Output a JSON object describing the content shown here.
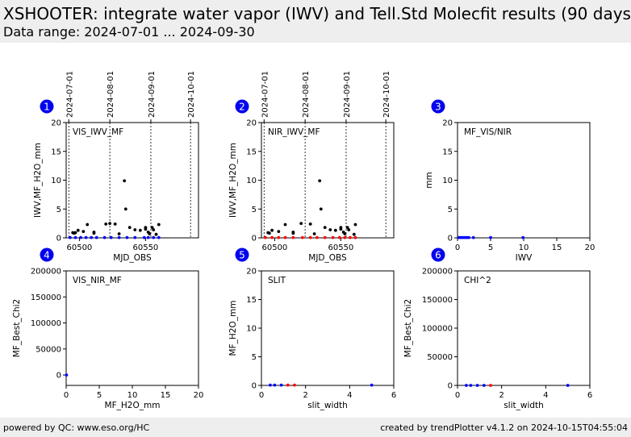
{
  "header": {
    "title": "XSHOOTER: integrate water vapor (IWV) and Tell.Std Molecfit results (90 days p",
    "subtitle": "Data range: 2024-07-01 ... 2024-09-30"
  },
  "footer": {
    "left": "powered by QC: www.eso.org/HC",
    "right": "created by trendPlotter v4.1.2 on 2024-10-15T04:55:04"
  },
  "colors": {
    "badge": "#0000ee",
    "black": "#000000",
    "blue": "#0000ff",
    "red": "#ff0000"
  },
  "chart_data": [
    {
      "id": "1",
      "type": "scatter",
      "label": "VIS_IWV_MF",
      "xlabel": "MJD_OBS",
      "ylabel": "IWV,MF_H2O_mm",
      "xlim": [
        60490,
        60590
      ],
      "ylim": [
        0,
        20
      ],
      "xticks": [
        60500,
        60550
      ],
      "yticks": [
        0,
        5,
        10,
        15,
        20
      ],
      "date_markers": [
        {
          "label": "2024-07-01",
          "x": 60492
        },
        {
          "label": "2024-08-01",
          "x": 60523
        },
        {
          "label": "2024-09-01",
          "x": 60554
        },
        {
          "label": "2024-10-01",
          "x": 60584
        }
      ],
      "series": [
        {
          "color": "black",
          "points": [
            [
              60495,
              0.9
            ],
            [
              60496,
              0.8
            ],
            [
              60497,
              0.9
            ],
            [
              60499,
              1.3
            ],
            [
              60503,
              1.1
            ],
            [
              60506,
              2.3
            ],
            [
              60511,
              0.8
            ],
            [
              60511,
              1.0
            ],
            [
              60520,
              2.4
            ],
            [
              60523,
              2.5
            ],
            [
              60527,
              2.4
            ],
            [
              60530,
              0.7
            ],
            [
              60534,
              9.9
            ],
            [
              60535,
              5.0
            ],
            [
              60538,
              1.8
            ],
            [
              60542,
              1.4
            ],
            [
              60546,
              1.3
            ],
            [
              60550,
              1.8
            ],
            [
              60550,
              1.5
            ],
            [
              60552,
              1.0
            ],
            [
              60553,
              0.7
            ],
            [
              60555,
              1.8
            ],
            [
              60556,
              1.4
            ],
            [
              60558,
              0.6
            ],
            [
              60560,
              2.3
            ]
          ]
        },
        {
          "color": "blue",
          "points": [
            [
              60493,
              0.05
            ],
            [
              60497,
              0.05
            ],
            [
              60501,
              0.05
            ],
            [
              60505,
              0.05
            ],
            [
              60509,
              0.05
            ],
            [
              60513,
              0.05
            ],
            [
              60519,
              0.05
            ],
            [
              60524,
              0.05
            ],
            [
              60530,
              0.05
            ],
            [
              60536,
              0.05
            ],
            [
              60542,
              0.05
            ],
            [
              60549,
              0.05
            ],
            [
              60552,
              0.05
            ],
            [
              60556,
              0.05
            ],
            [
              60560,
              0.05
            ]
          ]
        }
      ]
    },
    {
      "id": "2",
      "type": "scatter",
      "label": "NIR_IWV_MF",
      "xlabel": "MJD_OBS",
      "ylabel": "IWV,MF_H2O_mm",
      "xlim": [
        60490,
        60590
      ],
      "ylim": [
        0,
        20
      ],
      "xticks": [
        60500,
        60550
      ],
      "yticks": [
        0,
        5,
        10,
        15,
        20
      ],
      "date_markers": [
        {
          "label": "2024-07-01",
          "x": 60492
        },
        {
          "label": "2024-08-01",
          "x": 60523
        },
        {
          "label": "2024-09-01",
          "x": 60554
        },
        {
          "label": "2024-10-01",
          "x": 60584
        }
      ],
      "series": [
        {
          "color": "black",
          "points": [
            [
              60495,
              0.9
            ],
            [
              60496,
              0.8
            ],
            [
              60498,
              1.3
            ],
            [
              60503,
              1.1
            ],
            [
              60508,
              2.3
            ],
            [
              60514,
              0.8
            ],
            [
              60514,
              1.0
            ],
            [
              60520,
              2.5
            ],
            [
              60527,
              2.4
            ],
            [
              60530,
              0.7
            ],
            [
              60534,
              9.9
            ],
            [
              60535,
              5.0
            ],
            [
              60538,
              1.8
            ],
            [
              60542,
              1.4
            ],
            [
              60546,
              1.3
            ],
            [
              60550,
              1.8
            ],
            [
              60550,
              1.5
            ],
            [
              60552,
              1.0
            ],
            [
              60553,
              0.7
            ],
            [
              60555,
              1.8
            ],
            [
              60556,
              1.4
            ],
            [
              60560,
              0.6
            ],
            [
              60561,
              2.3
            ]
          ]
        },
        {
          "color": "red",
          "points": [
            [
              60493,
              0.05
            ],
            [
              60498,
              0.05
            ],
            [
              60503,
              0.05
            ],
            [
              60508,
              0.05
            ],
            [
              60514,
              0.05
            ],
            [
              60521,
              0.05
            ],
            [
              60527,
              0.05
            ],
            [
              60532,
              0.05
            ],
            [
              60538,
              0.05
            ],
            [
              60544,
              0.05
            ],
            [
              60549,
              0.05
            ],
            [
              60553,
              0.05
            ],
            [
              60557,
              0.05
            ],
            [
              60561,
              0.05
            ]
          ]
        }
      ]
    },
    {
      "id": "3",
      "type": "scatter",
      "label": "MF_VIS/NIR",
      "xlabel": "IWV",
      "ylabel": "mm",
      "xlim": [
        0,
        20
      ],
      "ylim": [
        0,
        20
      ],
      "xticks": [
        0,
        5,
        10,
        15,
        20
      ],
      "yticks": [
        0,
        5,
        10,
        15,
        20
      ],
      "date_markers": [],
      "series": [
        {
          "color": "blue",
          "points": [
            [
              0.2,
              0.05
            ],
            [
              0.5,
              0.05
            ],
            [
              0.8,
              0.05
            ],
            [
              1.1,
              0.05
            ],
            [
              1.4,
              0.05
            ],
            [
              1.7,
              0.05
            ],
            [
              2.4,
              0.05
            ],
            [
              5.0,
              0.05
            ],
            [
              9.9,
              0.05
            ]
          ]
        }
      ]
    },
    {
      "id": "4",
      "type": "scatter",
      "label": "VIS_NIR_MF",
      "xlabel": "MF_H2O_mm",
      "ylabel": "MF_Best_Chi2",
      "xlim": [
        0,
        20
      ],
      "ylim": [
        -20000,
        200000
      ],
      "xticks": [
        0,
        5,
        10,
        15,
        20
      ],
      "yticks": [
        0,
        50000,
        100000,
        150000,
        200000
      ],
      "date_markers": [],
      "series": [
        {
          "color": "blue",
          "points": [
            [
              0.05,
              0
            ]
          ]
        }
      ]
    },
    {
      "id": "5",
      "type": "scatter",
      "label": "SLIT",
      "xlabel": "slit_width",
      "ylabel": "MF_H2O_mm",
      "xlim": [
        0,
        6
      ],
      "ylim": [
        0,
        20
      ],
      "xticks": [
        0,
        2,
        4,
        6
      ],
      "yticks": [
        0,
        5,
        10,
        15,
        20
      ],
      "date_markers": [],
      "series": [
        {
          "color": "blue",
          "points": [
            [
              0.4,
              0.05
            ],
            [
              0.6,
              0.05
            ],
            [
              0.9,
              0.05
            ],
            [
              5.0,
              0.05
            ]
          ]
        },
        {
          "color": "red",
          "points": [
            [
              1.2,
              0.05
            ],
            [
              1.5,
              0.05
            ]
          ]
        }
      ]
    },
    {
      "id": "6",
      "type": "scatter",
      "label": "CHI^2",
      "xlabel": "slit_width",
      "ylabel": "MF_Best_Chi2",
      "xlim": [
        0,
        6
      ],
      "ylim": [
        0,
        200000
      ],
      "xticks": [
        0,
        2,
        4,
        6
      ],
      "yticks": [
        0,
        50000,
        100000,
        150000,
        200000
      ],
      "date_markers": [],
      "series": [
        {
          "color": "blue",
          "points": [
            [
              0.4,
              0
            ],
            [
              0.6,
              0
            ],
            [
              0.9,
              0
            ],
            [
              1.2,
              0
            ],
            [
              5.0,
              0
            ]
          ]
        },
        {
          "color": "red",
          "points": [
            [
              1.5,
              0
            ]
          ]
        }
      ]
    }
  ]
}
